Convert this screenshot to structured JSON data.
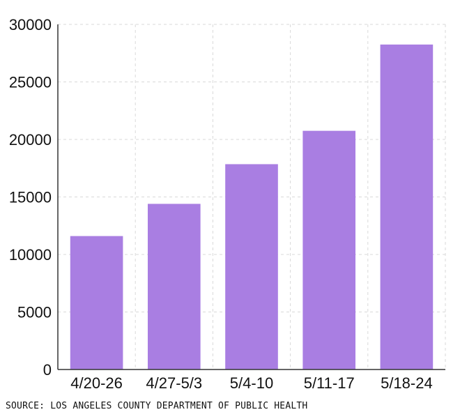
{
  "chart_data": {
    "type": "bar",
    "categories": [
      "4/20-26",
      "4/27-5/3",
      "5/4-10",
      "5/11-17",
      "5/18-24"
    ],
    "values": [
      11600,
      14400,
      17850,
      20750,
      28250
    ],
    "ylim": [
      0,
      30000
    ],
    "yticks": [
      0,
      5000,
      10000,
      15000,
      20000,
      25000,
      30000
    ],
    "grid": true,
    "bar_color": "#a97ee2",
    "title": "",
    "xlabel": "",
    "ylabel": ""
  },
  "footer": {
    "source": "SOURCE: LOS ANGELES COUNTY DEPARTMENT OF PUBLIC HEALTH"
  }
}
